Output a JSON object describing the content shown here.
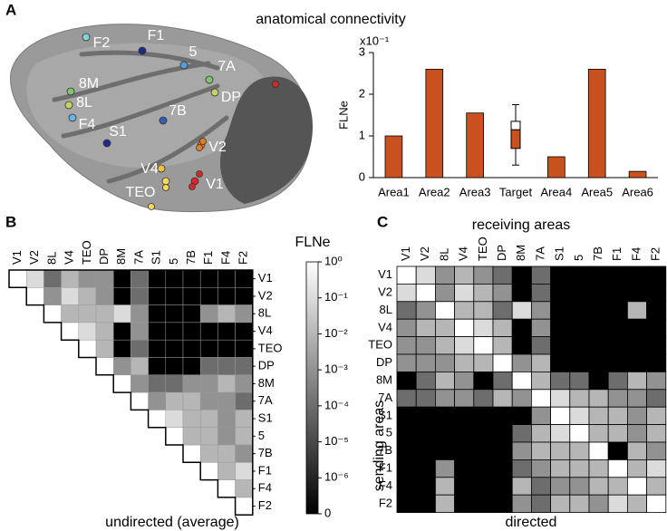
{
  "panels": [
    "A",
    "B",
    "C"
  ],
  "brain_areas": [
    "F2",
    "F1",
    "5",
    "8M",
    "8L",
    "F4",
    "7A",
    "DP",
    "7B",
    "S1",
    "V2",
    "V4",
    "TEO",
    "V1"
  ],
  "chart_data": [
    {
      "type": "bar",
      "title": "anatomical connectivity",
      "ylabel": "FLNe",
      "multiplier": "x10⁻¹",
      "categories": [
        "Area1",
        "Area2",
        "Area3",
        "Target",
        "Area4",
        "Area5",
        "Area6"
      ],
      "values": [
        1.0,
        2.6,
        1.55,
        null,
        0.5,
        2.6,
        0.15
      ],
      "color": "#c8511f",
      "box_low": [
        null,
        null,
        null,
        0.3,
        null,
        null,
        null
      ],
      "box_q1": [
        null,
        null,
        null,
        0.7,
        null,
        null,
        null
      ],
      "box_median": [
        null,
        null,
        null,
        1.15,
        null,
        null,
        null
      ],
      "box_q3": [
        null,
        null,
        null,
        1.35,
        null,
        null,
        null
      ],
      "box_high": [
        null,
        null,
        null,
        1.75,
        null,
        null,
        null
      ],
      "ylim": [
        0,
        3
      ],
      "yticks": [
        0,
        1,
        2,
        3
      ]
    },
    {
      "type": "triangle-heatmap",
      "xlabel": "undirected (average)",
      "colorbar_title": "FLNe",
      "categories": [
        "V1",
        "V2",
        "8L",
        "V4",
        "TEO",
        "DP",
        "8M",
        "7A",
        "S1",
        "5",
        "7B",
        "F1",
        "F4",
        "F2"
      ],
      "values": [
        [
          0.1,
          0.0001,
          0.01,
          0.001,
          0.001,
          0,
          0.0001,
          0,
          0,
          0,
          0,
          0,
          0
        ],
        [
          0.001,
          0.1,
          0.01,
          0.001,
          0,
          0.0001,
          0,
          0,
          0,
          0,
          0,
          0
        ],
        [
          0.01,
          0.01,
          0.01,
          0.1,
          0.001,
          0,
          0,
          0,
          0.001,
          0.01,
          0.001
        ],
        [
          0.1,
          0.01,
          0,
          0.001,
          0,
          0,
          0,
          0,
          0,
          0
        ],
        [
          0.01,
          0,
          0.0001,
          0,
          0,
          0,
          0,
          0,
          0
        ],
        [
          0.001,
          0.01,
          0,
          0,
          0,
          0.0001,
          0.0001,
          0.0001
        ],
        [
          0.001,
          0.0001,
          0.0001,
          0.001,
          0.001,
          0.01,
          0.001
        ],
        [
          0.001,
          0.01,
          0.01,
          0.001,
          0.001,
          0.0001
        ],
        [
          0.1,
          0.01,
          0.01,
          0.001,
          0.01
        ],
        [
          0.01,
          0.01,
          0.001,
          0.01
        ],
        [
          0.01,
          0.01,
          0.001
        ],
        [
          0.01,
          0.1
        ],
        [
          0.01
        ],
        []
      ],
      "log": true,
      "zlim": [
        0,
        1
      ],
      "zticks": [
        {
          "value": 1,
          "label": "10⁰"
        },
        {
          "value": 0.1,
          "label": "10⁻¹"
        },
        {
          "value": 0.01,
          "label": "10⁻²"
        },
        {
          "value": 0.001,
          "label": "10⁻³"
        },
        {
          "value": 0.0001,
          "label": "10⁻⁴"
        },
        {
          "value": 1e-05,
          "label": "10⁻⁵"
        },
        {
          "value": 1e-06,
          "label": "10⁻⁶"
        },
        0
      ]
    },
    {
      "type": "heatmap",
      "title": "receiving areas",
      "ylabel": "sending areas",
      "xlabel": "directed",
      "x_categories": [
        "V1",
        "V2",
        "8L",
        "V4",
        "TEO",
        "DP",
        "8M",
        "7A",
        "S1",
        "5",
        "7B",
        "F1",
        "F4",
        "F2"
      ],
      "y_categories": [
        "V1",
        "V2",
        "8L",
        "V4",
        "TEO",
        "DP",
        "8M",
        "7A",
        "S1",
        "5",
        "7B",
        "F1",
        "F4",
        "F2"
      ],
      "values": [
        [
          null,
          0.1,
          0.001,
          0.01,
          0.001,
          0.0001,
          0,
          0.0001,
          0,
          0,
          0,
          0,
          0,
          0
        ],
        [
          0.1,
          null,
          0.001,
          0.1,
          0.01,
          0.001,
          0,
          0.0001,
          0,
          0,
          0,
          0,
          0,
          0
        ],
        [
          0.0001,
          0.001,
          null,
          0.01,
          0.01,
          0.0001,
          0.1,
          0.001,
          0,
          0,
          0,
          0,
          0.01,
          0
        ],
        [
          0.001,
          0.01,
          0.01,
          null,
          0.1,
          0.01,
          0,
          0.001,
          0,
          0,
          0,
          0,
          0,
          0
        ],
        [
          0.001,
          0.001,
          0.01,
          0.1,
          null,
          0.01,
          0,
          0.0001,
          0,
          0,
          0,
          0,
          0,
          0
        ],
        [
          0.001,
          0.001,
          0.001,
          0.01,
          0.01,
          null,
          0.001,
          0.01,
          0,
          0,
          0,
          0,
          0,
          0
        ],
        [
          0,
          0.0001,
          0.01,
          0.001,
          0,
          0.0001,
          null,
          0.01,
          0.0001,
          0.0001,
          0,
          0.0001,
          0.01,
          0.001
        ],
        [
          0.0001,
          0.0001,
          0.001,
          0.001,
          0.0001,
          0.01,
          0.001,
          null,
          0.1,
          0.01,
          0.01,
          0.001,
          0.001,
          0.0001
        ],
        [
          0,
          0,
          0,
          0,
          0,
          0,
          0,
          0.001,
          null,
          0.1,
          0.01,
          0.01,
          0.001,
          0.01
        ],
        [
          0,
          0,
          0,
          0,
          0,
          0,
          0.0001,
          0.01,
          0.1,
          null,
          0.01,
          0.01,
          0.001,
          0.01
        ],
        [
          0,
          0,
          0,
          0,
          0,
          0,
          0.001,
          0.01,
          0.01,
          0.01,
          null,
          0,
          0.01,
          0.001
        ],
        [
          0,
          0,
          0.001,
          0,
          0,
          0,
          0.0001,
          0.001,
          0.01,
          0.01,
          0.01,
          null,
          0.01,
          0.1
        ],
        [
          0,
          0,
          0.01,
          0,
          0,
          0,
          0.01,
          0.0001,
          0.001,
          0.001,
          0.01,
          0.01,
          null,
          0.01
        ],
        [
          0,
          0,
          0.01,
          0,
          0,
          0,
          0.001,
          0.0001,
          0.01,
          0.01,
          0.001,
          0.1,
          0.01,
          null
        ]
      ],
      "log": true
    }
  ]
}
